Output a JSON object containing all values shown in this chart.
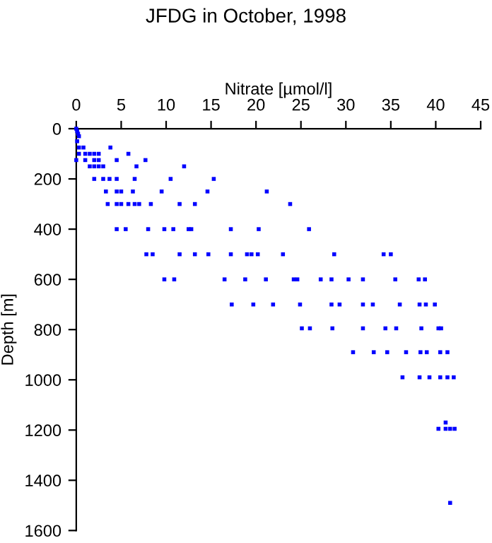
{
  "chart_data": {
    "type": "scatter",
    "title": "JFDG in October, 1998",
    "xlabel": "Nitrate [µmol/l]",
    "ylabel": "Depth [m]",
    "series": [
      {
        "color": "#0000ff",
        "x": [
          0,
          0.1,
          0.2,
          0.3,
          0.1,
          0.3,
          0.8,
          3.8,
          0.3,
          1,
          1.5,
          2,
          2.5,
          5.8,
          0,
          1,
          2,
          2.5,
          4.5,
          7.7,
          1.5,
          2,
          2.5,
          3,
          6.7,
          12,
          2,
          3,
          3.7,
          4.5,
          6.5,
          10.5,
          15.3,
          3.3,
          4.5,
          5,
          6.3,
          9.5,
          14.6,
          21.2,
          3.5,
          4.5,
          5,
          5.8,
          6.5,
          7,
          8.3,
          11.5,
          13.2,
          23.8,
          4.5,
          5.5,
          8,
          9.8,
          10.8,
          12.5,
          12.8,
          17.2,
          20.3,
          25.9,
          7.8,
          8.5,
          11.5,
          13.2,
          14.7,
          17.2,
          19,
          19.5,
          20.2,
          23,
          28.7,
          34.2,
          35,
          9.8,
          10.9,
          16.5,
          18.8,
          21.1,
          24.2,
          24.6,
          27.2,
          28.4,
          30.3,
          31.9,
          35.5,
          38.1,
          38.8,
          17.3,
          19.7,
          21.9,
          24.9,
          28.4,
          29.3,
          31.9,
          33,
          36,
          38.2,
          38.9,
          39.9,
          25.1,
          26,
          28.5,
          31.9,
          34.4,
          35.6,
          38.4,
          40.3,
          40.6,
          30.8,
          33.1,
          34.6,
          36.7,
          38.3,
          39,
          40.5,
          41.3,
          36.3,
          38.2,
          39.3,
          40.5,
          41.3,
          42,
          40.3,
          41.1,
          41.6,
          42.1,
          41.1,
          41.6
        ],
        "values": [
          0,
          10,
          20,
          30,
          50,
          75,
          75,
          75,
          100,
          100,
          100,
          100,
          100,
          100,
          125,
          125,
          125,
          125,
          125,
          125,
          150,
          150,
          150,
          150,
          150,
          150,
          200,
          200,
          200,
          200,
          200,
          200,
          200,
          250,
          250,
          250,
          250,
          250,
          250,
          250,
          300,
          300,
          300,
          300,
          300,
          300,
          300,
          300,
          300,
          300,
          400,
          400,
          400,
          400,
          400,
          400,
          400,
          400,
          400,
          400,
          500,
          500,
          500,
          500,
          500,
          500,
          500,
          500,
          500,
          500,
          500,
          500,
          500,
          600,
          600,
          600,
          600,
          600,
          600,
          600,
          600,
          600,
          600,
          600,
          600,
          600,
          600,
          700,
          700,
          700,
          700,
          700,
          700,
          700,
          700,
          700,
          700,
          700,
          700,
          795,
          795,
          795,
          795,
          795,
          795,
          795,
          795,
          795,
          890,
          890,
          890,
          890,
          890,
          890,
          890,
          890,
          990,
          990,
          990,
          990,
          990,
          990,
          1195,
          1195,
          1195,
          1195,
          1170,
          1490
        ]
      }
    ],
    "marker": "square",
    "grid": false,
    "xlim": [
      0,
      45
    ],
    "xticks": [
      0,
      5,
      10,
      15,
      20,
      25,
      30,
      35,
      40,
      45
    ],
    "ylim": [
      1600,
      0
    ],
    "yticks": [
      0,
      200,
      400,
      600,
      800,
      1000,
      1200,
      1400,
      1600
    ]
  }
}
